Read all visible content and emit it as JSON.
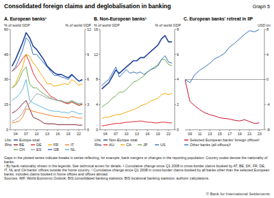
{
  "header": {
    "title": "Consolidated foreign claims and deglobalisation in banking",
    "graph_label": "Graph 5"
  },
  "chart_data": [
    {
      "type": "line",
      "title": "A. European banks¹",
      "y_label": "% of world GDP",
      "y2_label": "% of world GDP",
      "lhs_label": "Lhs:",
      "rhs_label": "Rhs:",
      "legend": "bottom",
      "grid": false,
      "x": [
        2003,
        2004,
        2005,
        2006,
        2007,
        2008,
        2009,
        2010,
        2011,
        2012,
        2013,
        2014,
        2015,
        2016,
        2017,
        2018,
        2019,
        2020,
        2021,
        2022,
        2023
      ],
      "xlim": [
        2002.5,
        2023.75
      ],
      "xticks": [
        {
          "value": 2004,
          "label": "04"
        },
        {
          "value": 2007,
          "label": "07"
        },
        {
          "value": 2010,
          "label": "10"
        },
        {
          "value": 2013,
          "label": "13"
        },
        {
          "value": 2016,
          "label": "16"
        },
        {
          "value": 2019,
          "label": "19"
        },
        {
          "value": 2022,
          "label": "22"
        }
      ],
      "ylim": [
        0,
        60
      ],
      "yticks": [
        0,
        15,
        30,
        45,
        60
      ],
      "y2lim": [
        0,
        12
      ],
      "y2ticks": [
        0,
        3,
        6,
        9,
        12
      ],
      "series": [
        {
          "name": "Europe total",
          "color": "#1c3f94",
          "values": [
            38,
            42,
            47,
            52,
            58,
            55,
            50,
            48,
            45,
            42,
            38,
            36,
            34,
            33,
            33,
            32,
            31,
            33,
            31,
            29,
            30
          ]
        },
        {
          "name": "BE",
          "axis": "y2",
          "color": "#7b1f2b",
          "values": [
            2,
            2.2,
            2.6,
            3.1,
            3.5,
            2.5,
            1.5,
            1.3,
            1.1,
            0.8,
            0.7,
            0.7,
            0.7,
            0.6,
            0.6,
            0.6,
            0.6,
            0.6,
            0.6,
            0.55,
            0.55
          ]
        },
        {
          "name": "DE",
          "axis": "y2",
          "color": "#e0202a",
          "values": [
            7,
            7.3,
            7.8,
            8.5,
            9,
            8,
            6.8,
            6,
            5.5,
            5,
            4.5,
            4,
            3.8,
            3.5,
            3.4,
            3.2,
            3.1,
            3.3,
            3.1,
            2.9,
            3
          ]
        },
        {
          "name": "FR",
          "axis": "y2",
          "color": "#f2a900",
          "values": [
            5,
            5.5,
            6.5,
            7.5,
            9,
            8.8,
            8,
            7.5,
            6.8,
            6.2,
            5.5,
            5.5,
            5.2,
            5.3,
            5.4,
            5.5,
            5.4,
            6,
            5.7,
            5.3,
            5.5
          ]
        },
        {
          "name": "IT",
          "axis": "y2",
          "color": "#f47c20",
          "values": [
            0.8,
            0.9,
            1,
            1.5,
            2.5,
            2.4,
            2.2,
            2.1,
            2,
            1.9,
            1.8,
            1.7,
            1.6,
            1.6,
            1.5,
            1.5,
            1.4,
            1.6,
            1.5,
            1.4,
            1.4
          ]
        },
        {
          "name": "CH",
          "axis": "y2",
          "color": "#6aa84f",
          "values": [
            5,
            5.3,
            6,
            7,
            7.5,
            5.5,
            5,
            5,
            4.6,
            4.3,
            4,
            3.8,
            3.6,
            3.5,
            3.5,
            3.3,
            3.2,
            3.4,
            3.2,
            3,
            3.1
          ]
        },
        {
          "name": "ES",
          "axis": "y2",
          "color": "#9aa0a6",
          "values": [
            1,
            1.2,
            1.5,
            2,
            2.8,
            3.2,
            3.8,
            4.3,
            4.2,
            4,
            3.8,
            3.7,
            3.6,
            3.5,
            3.4,
            3.3,
            3.3,
            3.5,
            3.3,
            3.1,
            3.2
          ]
        },
        {
          "name": "GB",
          "axis": "y2",
          "color": "#2f6db5",
          "values": [
            7,
            7.5,
            8.5,
            9.5,
            11,
            10.5,
            9,
            9,
            8.5,
            8,
            7.5,
            7,
            6.5,
            6.5,
            6.3,
            6.2,
            6,
            6.5,
            6.2,
            5.8,
            5.9
          ]
        },
        {
          "name": "NL",
          "axis": "y2",
          "color": "#59b4d9",
          "values": [
            3.5,
            3.8,
            4.2,
            4.8,
            6,
            3.5,
            3.2,
            3,
            2.8,
            2.6,
            2.4,
            2.3,
            2.2,
            2.2,
            2.1,
            2.1,
            2,
            2.2,
            2.1,
            1.9,
            1.9
          ]
        }
      ]
    },
    {
      "type": "line",
      "title": "B. Non-European banks¹",
      "y_label": "% of world GDP",
      "y2_label": "% of world GDP",
      "lhs_label": "Lhs:",
      "rhs_label": "Rhs:",
      "legend": "bottom",
      "grid": false,
      "x": [
        2003,
        2004,
        2005,
        2006,
        2007,
        2008,
        2009,
        2010,
        2011,
        2012,
        2013,
        2014,
        2015,
        2016,
        2017,
        2018,
        2019,
        2020,
        2021,
        2022,
        2023
      ],
      "xlim": [
        2002.5,
        2023.75
      ],
      "xticks": [
        {
          "value": 2004,
          "label": "04"
        },
        {
          "value": 2007,
          "label": "07"
        },
        {
          "value": 2010,
          "label": "10"
        },
        {
          "value": 2013,
          "label": "13"
        },
        {
          "value": 2016,
          "label": "16"
        },
        {
          "value": 2019,
          "label": "19"
        },
        {
          "value": 2022,
          "label": "22"
        }
      ],
      "ylim": [
        0,
        16
      ],
      "yticks": [
        0,
        4,
        8,
        12,
        16
      ],
      "y2lim": [
        0,
        8
      ],
      "y2ticks": [
        0,
        2,
        4,
        6,
        8
      ],
      "series": [
        {
          "name": "Non-Europe total",
          "color": "#1c3f94",
          "values": [
            6.5,
            7,
            7.5,
            8.5,
            9.5,
            9,
            9.5,
            10,
            10.5,
            11,
            11,
            11.5,
            11.5,
            12,
            12.5,
            13,
            13.5,
            14.5,
            15,
            14,
            14
          ]
        },
        {
          "name": "AU",
          "axis": "y2",
          "color": "#e0202a",
          "values": [
            0.3,
            0.35,
            0.4,
            0.45,
            0.5,
            0.5,
            0.55,
            0.6,
            0.6,
            0.65,
            0.65,
            0.7,
            0.65,
            0.6,
            0.6,
            0.55,
            0.55,
            0.6,
            0.6,
            0.55,
            0.55
          ]
        },
        {
          "name": "CA",
          "axis": "y2",
          "color": "#f2a900",
          "values": [
            0.9,
            1,
            1,
            1.1,
            1.2,
            1.2,
            1.3,
            1.4,
            1.5,
            1.6,
            1.7,
            1.9,
            2,
            2.1,
            2.3,
            2.4,
            2.5,
            2.8,
            2.9,
            2.8,
            2.9
          ]
        },
        {
          "name": "JP",
          "axis": "y2",
          "color": "#6aa84f",
          "values": [
            1.8,
            2,
            2.2,
            2.5,
            2.7,
            3,
            3,
            3.2,
            3.5,
            3.8,
            3.9,
            4.1,
            4.3,
            4.6,
            4.8,
            5,
            5.2,
            5.6,
            5.6,
            5.2,
            5.1
          ]
        },
        {
          "name": "US",
          "axis": "y2",
          "color": "#2f6db5",
          "values": [
            3.5,
            3.8,
            4,
            4.5,
            5,
            4.2,
            4.5,
            4.8,
            4.5,
            4.6,
            4.5,
            4.6,
            4.4,
            4.6,
            4.8,
            4.9,
            5.1,
            5.6,
            5.9,
            5.4,
            5.3
          ]
        }
      ]
    },
    {
      "type": "line",
      "title": "C. European banks' retreat in IIP",
      "y2_label": "USD trn",
      "legend": "bottom",
      "grid": false,
      "x": [
        2008,
        2009,
        2010,
        2011,
        2012,
        2013,
        2014,
        2015,
        2016,
        2017,
        2018,
        2019,
        2020,
        2021,
        2022,
        2023
      ],
      "xlim": [
        2008,
        2024
      ],
      "xticks": [
        {
          "value": 2009,
          "label": "09"
        },
        {
          "value": 2011,
          "label": "11"
        },
        {
          "value": 2013,
          "label": "13"
        },
        {
          "value": 2015,
          "label": "15"
        },
        {
          "value": 2017,
          "label": "17"
        },
        {
          "value": 2019,
          "label": "19"
        },
        {
          "value": 2021,
          "label": "21"
        },
        {
          "value": 2023,
          "label": "23"
        }
      ],
      "y2lim": [
        -8,
        8
      ],
      "y2ticks": [
        -8,
        -4,
        0,
        4,
        8
      ],
      "series": [
        {
          "name": "Selected European banks' foreign offices²",
          "axis": "y2",
          "color": "#c8102e",
          "values": [
            0,
            -3.5,
            -4.2,
            -4.8,
            -5.3,
            -5.6,
            -5.8,
            -6.1,
            -6.2,
            -6.3,
            -6.5,
            -6.6,
            -6.4,
            -6.7,
            -7,
            -6.9
          ]
        },
        {
          "name": "Other banks (all offices)³",
          "axis": "y2",
          "color": "#2f6db5",
          "values": [
            0,
            -0.5,
            0.8,
            1.5,
            2,
            2.6,
            3.3,
            3.7,
            4.2,
            5.2,
            5.8,
            6.5,
            7.2,
            7.8,
            7.6,
            8
          ]
        }
      ]
    }
  ],
  "footer": {
    "gaps_note": "Gaps in the plotted series indicate breaks in series reflecting, for example, bank mergers or changes in the reporting population. Country codes denote the nationality of banks.",
    "notes": [
      "¹ By bank nationality shown in the legends. See technical annex for details.",
      "² Cumulative change since Q1 2008 in cross-border claims booked by AT, BE, DK, FR, DE, IT, NL and CH banks' offices outside the home country.",
      "³ Cumulative change since Q1 2008 in cross-border claims booked by all banks other than the selected European banks; includes claims booked in home offices and offices abroad."
    ],
    "sources": "Sources: IMF, World Economic Outlook; BIS consolidated banking statistics; BIS locational banking statistics; authors' calculations.",
    "copyright": "© Bank for International Settlements"
  }
}
